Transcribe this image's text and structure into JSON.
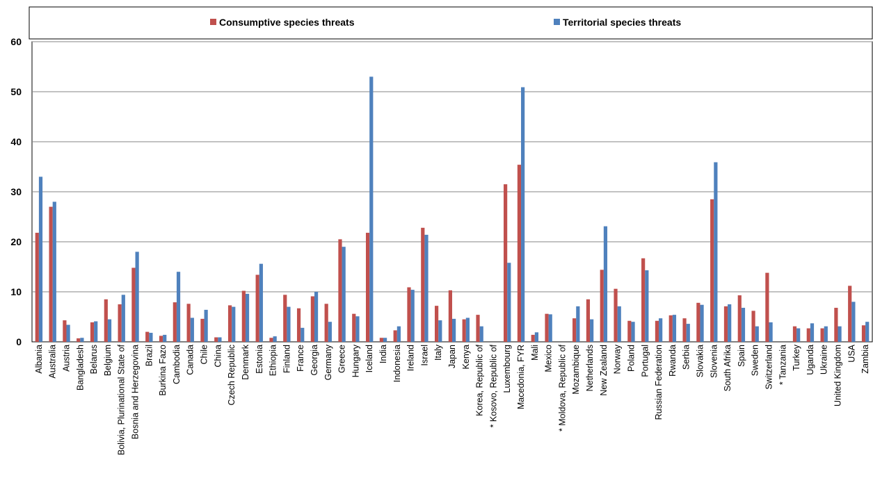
{
  "chart_data": {
    "type": "bar",
    "ylim": [
      0,
      60
    ],
    "yticks": [
      "0",
      "10",
      "20",
      "30",
      "40",
      "50",
      "60"
    ],
    "grid": true,
    "legend_position": "top",
    "categories": [
      "Albania",
      "Australia",
      "Austria",
      "Bangladesh",
      "Belarus",
      "Belgium",
      "Bolivia, Plurinational State of",
      "Bosnia and Herzegovina",
      "Brazil",
      "Burkina Fazo",
      "Cambodia",
      "Canada",
      "Chile",
      "China",
      "Czech Republic",
      "Denmark",
      "Estonia",
      "Ethiopia",
      "Finland",
      "France",
      "Georgia",
      "Germany",
      "Greece",
      "Hungary",
      "Iceland",
      "India",
      "Indonesia",
      "Ireland",
      "Israel",
      "Italy",
      "Japan",
      "Kenya",
      "Korea, Republic of",
      "* Kosovo, Republic of",
      "Luxembourg",
      "Macedonia, FYR",
      "Mali",
      "Mexico",
      "* Moldova, Republic of",
      "Mozambique",
      "Netherlands",
      "New Zealand",
      "Norway",
      "Poland",
      "Portugal",
      "Russian Federation",
      "Rwanda",
      "Serbia",
      "Slovakia",
      "Slovenia",
      "South Afrika",
      "Spain",
      "Sweden",
      "Switzerland",
      "* Tanzania",
      "Turkey",
      "Uganda",
      "Ukraine",
      "United Kingdom",
      "USA",
      "Zambia"
    ],
    "series": [
      {
        "name": "Consumptive species threats",
        "color": "#c0504d",
        "values": [
          21.8,
          27,
          4.3,
          0.7,
          3.9,
          8.5,
          7.5,
          14.8,
          2,
          1.2,
          7.9,
          7.6,
          4.6,
          0.9,
          7.3,
          10.2,
          13.4,
          0.8,
          9.4,
          6.7,
          9.1,
          7.6,
          20.5,
          5.6,
          21.8,
          0.8,
          2.3,
          10.9,
          22.8,
          7.2,
          10.3,
          4.5,
          5.4,
          0,
          31.5,
          35.4,
          1.4,
          5.6,
          0,
          4.7,
          8.5,
          14.4,
          10.6,
          4.2,
          16.7,
          4.2,
          5.3,
          4.7,
          7.8,
          28.5,
          7.1,
          9.3,
          6.2,
          13.8,
          0,
          3.1,
          2.7,
          2.7,
          6.8,
          11.2,
          3.3
        ]
      },
      {
        "name": "Territorial species threats",
        "color": "#4f81bd",
        "values": [
          33,
          28,
          3.4,
          0.8,
          4.1,
          4.5,
          9.4,
          18,
          1.8,
          1.4,
          14,
          4.8,
          6.4,
          0.9,
          7,
          9.6,
          15.6,
          1.1,
          7,
          2.8,
          10,
          4,
          19,
          5.1,
          53,
          0.8,
          3.1,
          10.4,
          21.4,
          4.3,
          4.6,
          4.8,
          3.1,
          0,
          15.8,
          50.9,
          1.9,
          5.5,
          0,
          7.1,
          4.5,
          23.1,
          7.1,
          4,
          14.3,
          4.7,
          5.4,
          3.6,
          7.4,
          35.9,
          7.5,
          6.8,
          3.1,
          3.9,
          0,
          2.7,
          3.7,
          3.1,
          3.1,
          8,
          4
        ]
      }
    ]
  },
  "legend": {
    "items": [
      {
        "label": "Consumptive species threats",
        "color": "#c0504d"
      },
      {
        "label": "Territorial species threats",
        "color": "#4f81bd"
      }
    ]
  }
}
